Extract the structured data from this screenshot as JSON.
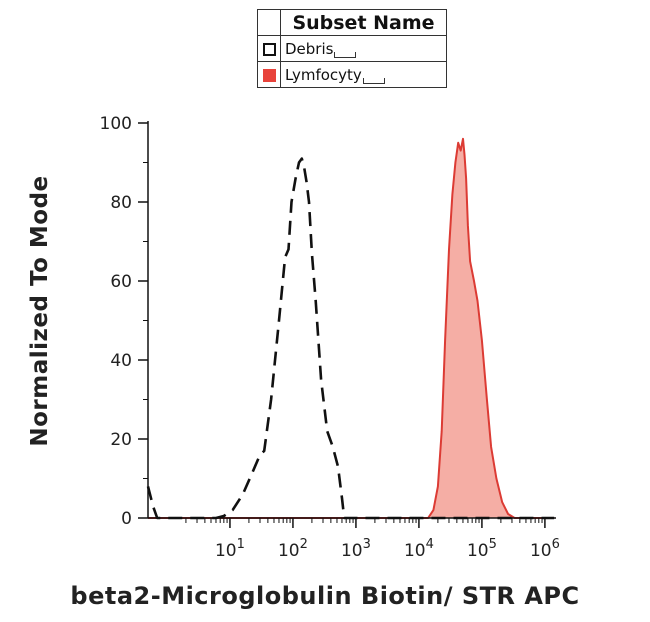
{
  "legend": {
    "header": "Subset Name",
    "items": [
      {
        "label": "Debris",
        "fill": "#ffffff",
        "border": "#111111"
      },
      {
        "label": "Lymfocyty",
        "fill": "#e8433b",
        "border": "#e8433b"
      }
    ]
  },
  "chart_data": {
    "type": "area",
    "xlabel": "beta2-Microglobulin Biotin/ STR APC",
    "ylabel": "Normalized To Mode",
    "xscale": "log",
    "xlim": [
      0.5,
      1500000
    ],
    "ylim": [
      0,
      100
    ],
    "yticks": [
      0,
      20,
      40,
      60,
      80,
      100
    ],
    "xticks": [
      {
        "base": "10",
        "exp": "1",
        "value": 10
      },
      {
        "base": "10",
        "exp": "2",
        "value": 100
      },
      {
        "base": "10",
        "exp": "3",
        "value": 1000
      },
      {
        "base": "10",
        "exp": "4",
        "value": 10000
      },
      {
        "base": "10",
        "exp": "5",
        "value": 100000
      },
      {
        "base": "10",
        "exp": "6",
        "value": 1000000
      }
    ],
    "series": [
      {
        "name": "Debris",
        "style": "dashed",
        "color": "#111111",
        "fill": "none",
        "points": [
          [
            0.5,
            8
          ],
          [
            0.6,
            3
          ],
          [
            0.7,
            0
          ],
          [
            4,
            0
          ],
          [
            6,
            0
          ],
          [
            8,
            0.5
          ],
          [
            11,
            2
          ],
          [
            16,
            6
          ],
          [
            22,
            11
          ],
          [
            30,
            16
          ],
          [
            35,
            17
          ],
          [
            45,
            30
          ],
          [
            60,
            50
          ],
          [
            75,
            66
          ],
          [
            85,
            68
          ],
          [
            95,
            80
          ],
          [
            110,
            86
          ],
          [
            125,
            90
          ],
          [
            138,
            91
          ],
          [
            150,
            89
          ],
          [
            165,
            85
          ],
          [
            180,
            80
          ],
          [
            200,
            67
          ],
          [
            230,
            55
          ],
          [
            280,
            35
          ],
          [
            350,
            22
          ],
          [
            430,
            18
          ],
          [
            520,
            13
          ],
          [
            600,
            5
          ],
          [
            650,
            0
          ],
          [
            1000,
            0
          ],
          [
            3000,
            0
          ],
          [
            10000,
            0
          ],
          [
            100000,
            0
          ],
          [
            1000000,
            0
          ],
          [
            1400000,
            0
          ]
        ]
      },
      {
        "name": "Lymfocyty",
        "style": "solid",
        "color": "#dc3b34",
        "fill": "#f5aea5",
        "points": [
          [
            0.5,
            0
          ],
          [
            8000,
            0
          ],
          [
            14000,
            0
          ],
          [
            17000,
            2
          ],
          [
            20000,
            8
          ],
          [
            23000,
            22
          ],
          [
            26000,
            45
          ],
          [
            30000,
            68
          ],
          [
            34000,
            82
          ],
          [
            38000,
            90
          ],
          [
            42000,
            95
          ],
          [
            46000,
            93
          ],
          [
            50000,
            96
          ],
          [
            53000,
            92
          ],
          [
            56000,
            86
          ],
          [
            60000,
            74
          ],
          [
            65000,
            65
          ],
          [
            75000,
            60
          ],
          [
            85000,
            55
          ],
          [
            100000,
            45
          ],
          [
            120000,
            30
          ],
          [
            140000,
            18
          ],
          [
            170000,
            10
          ],
          [
            210000,
            4
          ],
          [
            260000,
            1
          ],
          [
            330000,
            0
          ],
          [
            1000000,
            0
          ],
          [
            1400000,
            0
          ]
        ]
      }
    ]
  }
}
